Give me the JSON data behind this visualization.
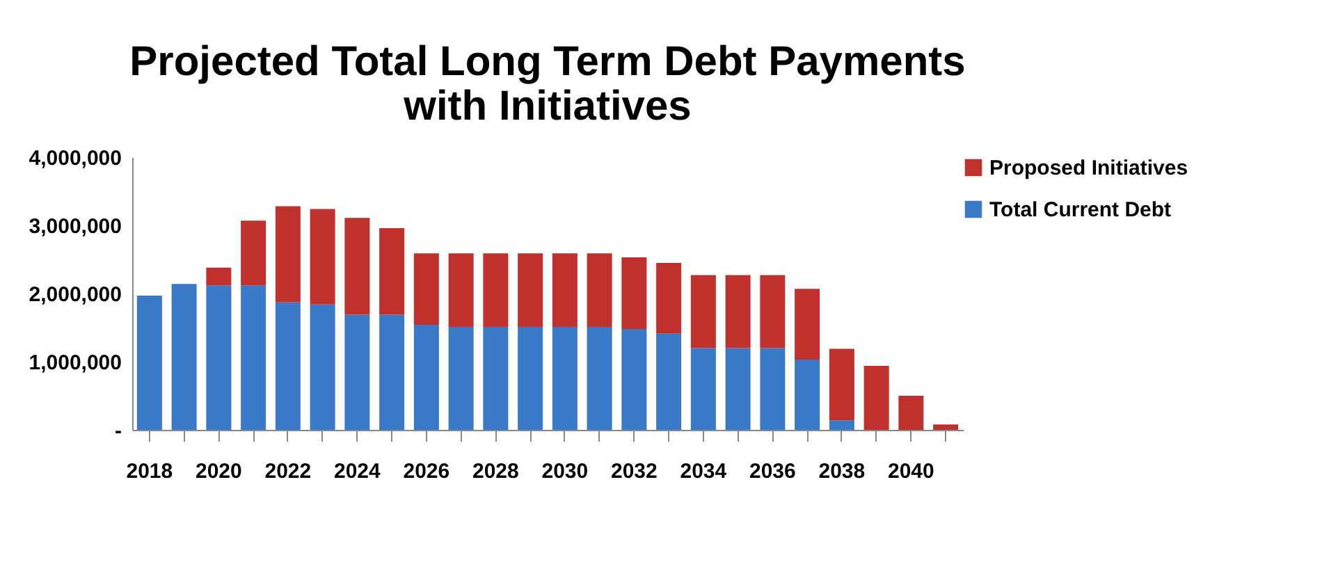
{
  "chart_data": {
    "type": "bar",
    "title": "Projected Total Long Term Debt Payments\nwith Initiatives",
    "stacked": true,
    "categories": [
      "2018",
      null,
      "2020",
      null,
      "2022",
      null,
      "2024",
      null,
      "2026",
      null,
      "2028",
      null,
      "2030",
      null,
      "2032",
      null,
      "2034",
      null,
      "2036",
      null,
      "2038",
      null,
      "2040",
      null
    ],
    "series": [
      {
        "name": "Total Current Debt",
        "color": "#3a78c8",
        "values": [
          1970000,
          2140000,
          2120000,
          2120000,
          1870000,
          1840000,
          1690000,
          1690000,
          1540000,
          1510000,
          1510000,
          1510000,
          1510000,
          1510000,
          1480000,
          1410000,
          1200000,
          1200000,
          1200000,
          1030000,
          140000,
          0,
          0,
          0
        ]
      },
      {
        "name": "Proposed Initiatives",
        "color": "#c0302c",
        "values": [
          0,
          0,
          260000,
          950000,
          1410000,
          1400000,
          1420000,
          1270000,
          1050000,
          1080000,
          1080000,
          1080000,
          1080000,
          1080000,
          1050000,
          1040000,
          1070000,
          1070000,
          1070000,
          1040000,
          1050000,
          940000,
          500000,
          80000
        ]
      }
    ],
    "ylim": [
      0,
      4000000
    ],
    "yticks": [
      {
        "value": 0,
        "label": "-"
      },
      {
        "value": 1000000,
        "label": "1,000,000"
      },
      {
        "value": 2000000,
        "label": "2,000,000"
      },
      {
        "value": 3000000,
        "label": "3,000,000"
      },
      {
        "value": 4000000,
        "label": "4,000,000"
      }
    ],
    "grid": false,
    "legend": "right"
  }
}
